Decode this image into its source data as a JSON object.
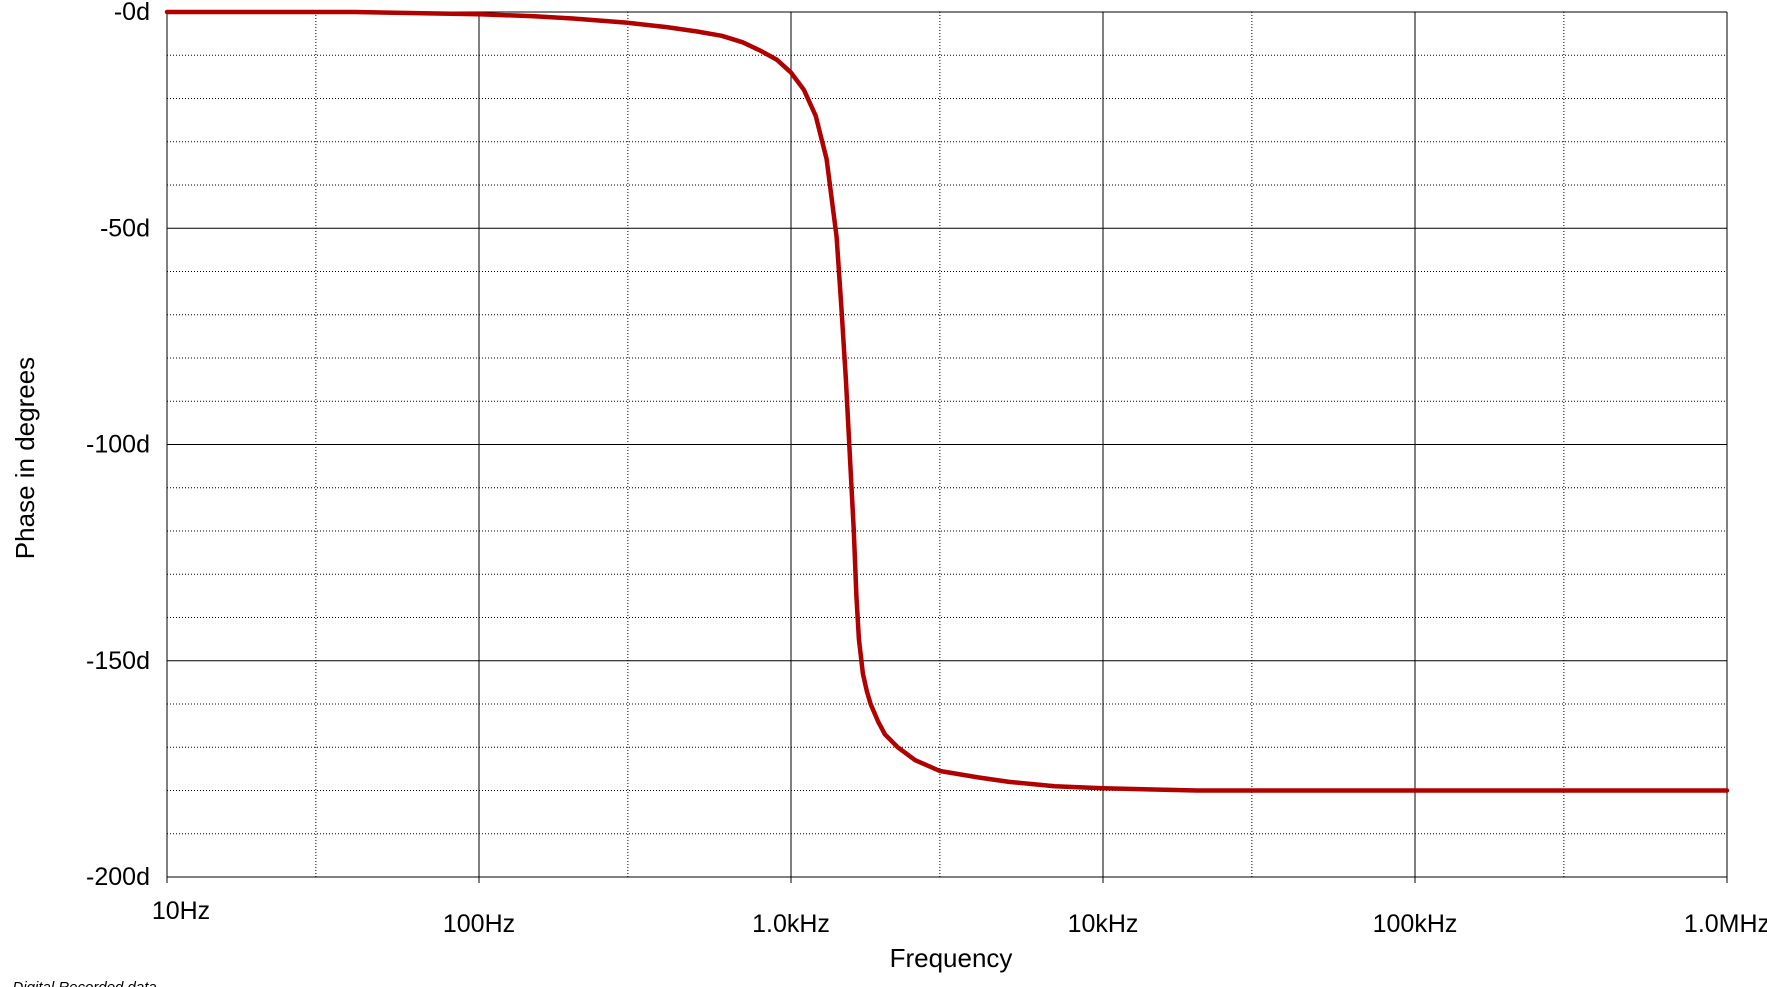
{
  "chart_data": {
    "type": "line",
    "title": "",
    "xlabel": "Frequency",
    "ylabel": "Phase in degrees",
    "x_scale": "log",
    "xlim": [
      10,
      1000000
    ],
    "ylim": [
      -200,
      0
    ],
    "grid": true,
    "x_ticks": [
      {
        "value": 10,
        "label": "10Hz"
      },
      {
        "value": 100,
        "label": "100Hz"
      },
      {
        "value": 1000,
        "label": "1.0kHz"
      },
      {
        "value": 10000,
        "label": "10kHz"
      },
      {
        "value": 100000,
        "label": "100kHz"
      },
      {
        "value": 1000000,
        "label": "1.0MHz"
      }
    ],
    "y_ticks": [
      {
        "value": 0,
        "label": "-0d"
      },
      {
        "value": -50,
        "label": "-50d"
      },
      {
        "value": -100,
        "label": "-100d"
      },
      {
        "value": -150,
        "label": "-150d"
      },
      {
        "value": -200,
        "label": "-200d"
      }
    ],
    "series": [
      {
        "color": "#b00000",
        "x": [
          10,
          40,
          100,
          150,
          200,
          300,
          400,
          500,
          600,
          700,
          800,
          900,
          1000,
          1100,
          1200,
          1300,
          1400,
          1450,
          1500,
          1550,
          1590,
          1620,
          1650,
          1700,
          1750,
          1800,
          1900,
          2000,
          2200,
          2500,
          3000,
          4000,
          5000,
          7000,
          10000,
          20000,
          50000,
          100000,
          1000000
        ],
        "y": [
          0,
          0,
          -0.5,
          -1,
          -1.5,
          -2.5,
          -3.5,
          -4.5,
          -5.5,
          -7,
          -9,
          -11,
          -14,
          -18,
          -24,
          -34,
          -52,
          -68,
          -85,
          -105,
          -120,
          -135,
          -145,
          -153,
          -157,
          -160,
          -164,
          -167,
          -170,
          -173,
          -175.5,
          -177,
          -178,
          -179,
          -179.5,
          -180,
          -180,
          -180,
          -180
        ]
      }
    ]
  },
  "credit": "rijk - Digital Recorded data"
}
